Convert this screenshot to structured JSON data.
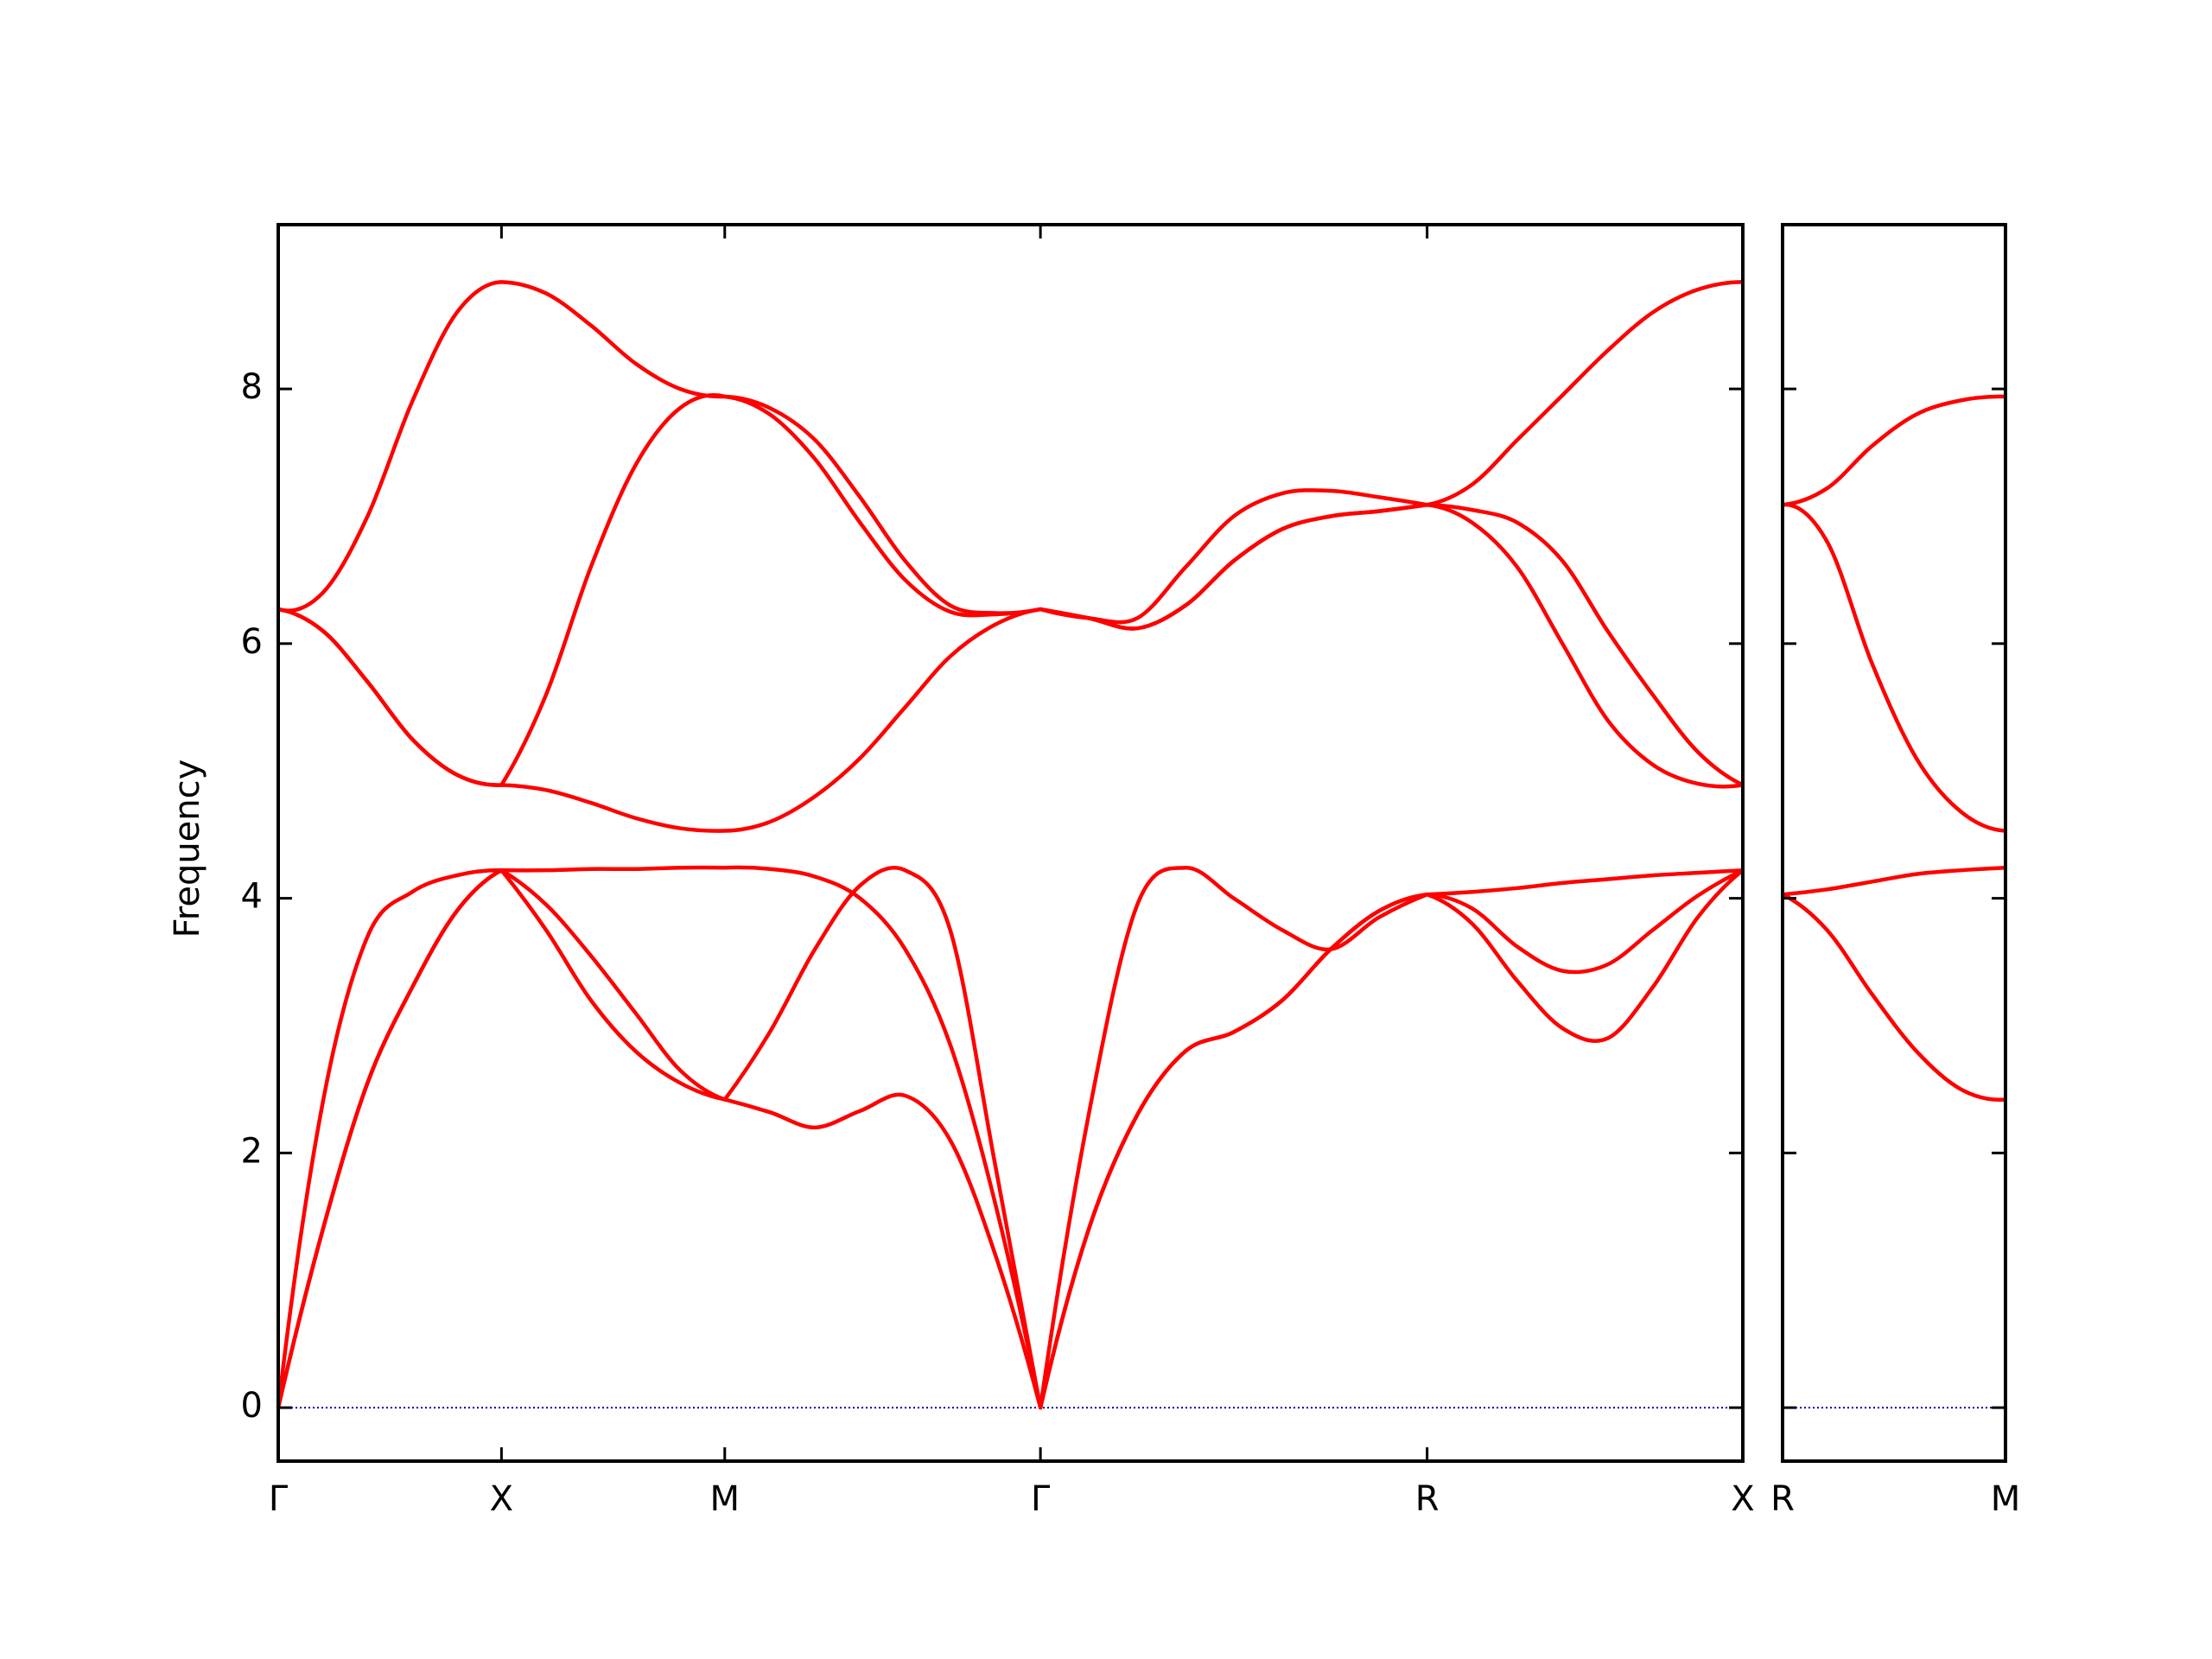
{
  "chart_data": [
    {
      "type": "line",
      "ylabel": "Frequency",
      "x": [
        0,
        0.1,
        0.2,
        0.3,
        0.4,
        0.5,
        0.6,
        0.7,
        0.8,
        0.9,
        1.0,
        1.101,
        1.202,
        1.303,
        1.404,
        1.505,
        1.606,
        1.707,
        1.815,
        1.924,
        2.032,
        2.14,
        2.249,
        2.357,
        2.465,
        2.573,
        2.674,
        2.775,
        2.876,
        2.977,
        3.078,
        3.179,
        3.28
      ],
      "xlim": [
        0,
        3.28
      ],
      "xticks": [
        {
          "value": 0,
          "label": "Γ"
        },
        {
          "value": 0.5,
          "label": "X"
        },
        {
          "value": 1.0,
          "label": "M"
        },
        {
          "value": 1.707,
          "label": "Γ"
        },
        {
          "value": 2.573,
          "label": "R"
        },
        {
          "value": 3.28,
          "label": "X"
        }
      ],
      "ylim": [
        -0.42,
        9.29
      ],
      "yticks": [
        0,
        2,
        4,
        6,
        8
      ],
      "yticklabels": true,
      "hline": 0,
      "hline_color": "#0000aa",
      "series": [
        {
          "color": "#ff0000",
          "values": [
            0,
            1.4,
            2.55,
            3.3,
            3.9,
            4.22,
            3.75,
            3.2,
            2.8,
            2.55,
            2.42,
            2.32,
            2.2,
            2.33,
            2.45,
            2.1,
            1.2,
            0,
            1.4,
            2.3,
            2.8,
            2.95,
            3.2,
            3.6,
            3.9,
            4.03,
            3.8,
            3.35,
            2.98,
            2.9,
            3.3,
            3.85,
            4.22
          ]
        },
        {
          "color": "#ff0000",
          "values": [
            0,
            1.4,
            2.55,
            3.3,
            3.9,
            4.22,
            3.95,
            3.55,
            3.1,
            2.65,
            2.42,
            2.95,
            3.6,
            4.1,
            4.22,
            3.75,
            1.9,
            0,
            1.4,
            2.3,
            2.8,
            2.95,
            3.2,
            3.6,
            3.9,
            4.03,
            3.92,
            3.62,
            3.43,
            3.48,
            3.75,
            4.02,
            4.22
          ]
        },
        {
          "color": "#ff0000",
          "values": [
            0,
            2.4,
            3.7,
            4.05,
            4.18,
            4.22,
            4.22,
            4.23,
            4.23,
            4.24,
            4.24,
            4.23,
            4.17,
            4.0,
            3.6,
            2.85,
            1.6,
            0,
            2.3,
            3.95,
            4.24,
            4.0,
            3.75,
            3.6,
            3.85,
            4.03,
            4.05,
            4.08,
            4.12,
            4.15,
            4.18,
            4.2,
            4.22
          ]
        },
        {
          "color": "#ff0000",
          "values": [
            6.27,
            6.4,
            7.0,
            7.9,
            8.6,
            8.84,
            8.75,
            8.5,
            8.2,
            8.0,
            7.94,
            7.85,
            7.6,
            7.15,
            6.65,
            6.3,
            6.24,
            6.27,
            6.2,
            6.2,
            6.6,
            7.0,
            7.18,
            7.2,
            7.15,
            7.09,
            7.25,
            7.6,
            7.95,
            8.3,
            8.6,
            8.78,
            8.84
          ]
        },
        {
          "color": "#ff0000",
          "values": [
            6.27,
            6.1,
            5.7,
            5.25,
            4.97,
            4.89,
            5.6,
            6.6,
            7.4,
            7.85,
            7.94,
            7.8,
            7.45,
            6.95,
            6.5,
            6.25,
            6.23,
            6.27,
            6.2,
            6.12,
            6.3,
            6.65,
            6.9,
            7.0,
            7.04,
            7.09,
            7.05,
            6.95,
            6.65,
            6.1,
            5.6,
            5.15,
            4.89
          ]
        },
        {
          "color": "#ff0000",
          "values": [
            6.27,
            6.1,
            5.7,
            5.25,
            4.97,
            4.89,
            4.85,
            4.75,
            4.63,
            4.55,
            4.53,
            4.6,
            4.8,
            5.1,
            5.5,
            5.9,
            6.15,
            6.27,
            6.2,
            6.12,
            6.3,
            6.65,
            6.9,
            7.0,
            7.04,
            7.09,
            6.95,
            6.6,
            6.0,
            5.4,
            5.05,
            4.9,
            4.89
          ]
        }
      ]
    },
    {
      "type": "line",
      "x": [
        0,
        0.1,
        0.2,
        0.3,
        0.4,
        0.5
      ],
      "xlim": [
        0,
        0.5
      ],
      "xticks": [
        {
          "value": 0,
          "label": "R"
        },
        {
          "value": 0.5,
          "label": "M"
        }
      ],
      "ylim": [
        -0.42,
        9.29
      ],
      "yticks": [
        0,
        2,
        4,
        6,
        8
      ],
      "yticklabels": false,
      "hline": 0,
      "hline_color": "#0000aa",
      "series": [
        {
          "color": "#ff0000",
          "values": [
            7.09,
            7.22,
            7.55,
            7.8,
            7.91,
            7.94
          ]
        },
        {
          "color": "#ff0000",
          "values": [
            7.09,
            6.8,
            5.85,
            5.1,
            4.68,
            4.53
          ]
        },
        {
          "color": "#ff0000",
          "values": [
            4.03,
            4.07,
            4.13,
            4.19,
            4.22,
            4.24
          ]
        },
        {
          "color": "#ff0000",
          "values": [
            4.03,
            3.75,
            3.25,
            2.8,
            2.5,
            2.42
          ]
        }
      ]
    }
  ]
}
